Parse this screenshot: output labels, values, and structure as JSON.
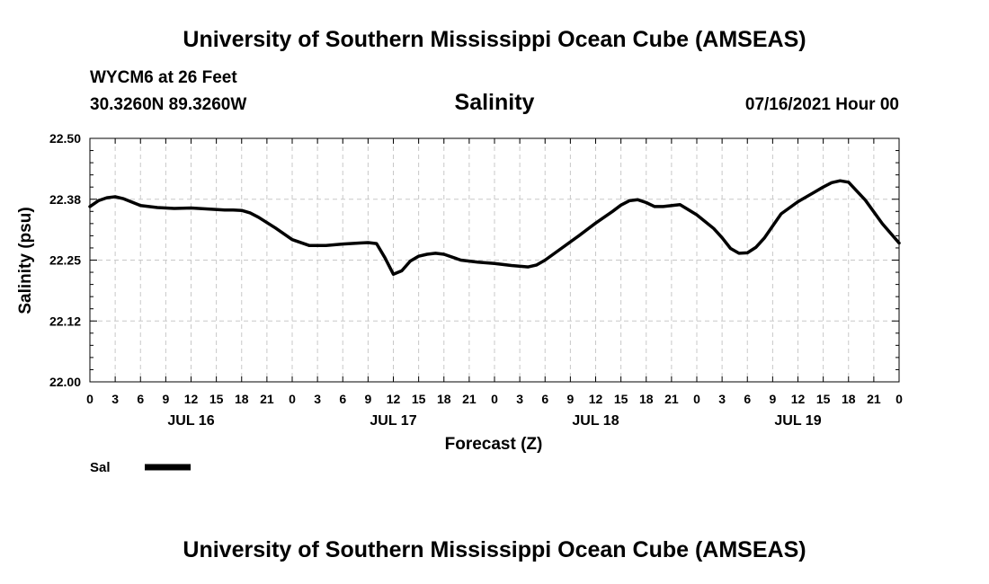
{
  "header": {
    "title": "University of Southern Mississippi Ocean Cube (AMSEAS)",
    "station": "WYCM6 at 26 Feet",
    "coords": "30.3260N  89.3260W",
    "date": "07/16/2021 Hour 00"
  },
  "footer": {
    "title": "University of Southern Mississippi Ocean Cube (AMSEAS)"
  },
  "colors": {
    "line": "#000000",
    "grid": "#c8c8c8"
  },
  "chart_data": {
    "type": "line",
    "title": "Salinity",
    "xlabel": "Forecast (Z)",
    "ylabel": "Salinity (psu)",
    "ylim": [
      22.0,
      22.5
    ],
    "yticks": [
      "22.00",
      "22.12",
      "22.25",
      "22.38",
      "22.50"
    ],
    "xlim": [
      0,
      96
    ],
    "xtick_step": 3,
    "xticks": [
      "0",
      "3",
      "6",
      "9",
      "12",
      "15",
      "18",
      "21",
      "0",
      "3",
      "6",
      "9",
      "12",
      "15",
      "18",
      "21",
      "0",
      "3",
      "6",
      "9",
      "12",
      "15",
      "18",
      "21",
      "0",
      "3",
      "6",
      "9",
      "12",
      "15",
      "18",
      "21",
      "0"
    ],
    "day_labels": [
      {
        "label": "JUL 16",
        "x": 12
      },
      {
        "label": "JUL 17",
        "x": 36
      },
      {
        "label": "JUL 18",
        "x": 60
      },
      {
        "label": "JUL 19",
        "x": 84
      }
    ],
    "grid": true,
    "legend_position": "bottom-left",
    "series": [
      {
        "name": "Sal",
        "x": [
          0,
          1,
          2,
          3,
          4,
          5,
          6,
          8,
          10,
          12,
          14,
          16,
          17,
          18,
          19,
          20,
          22,
          24,
          26,
          28,
          30,
          32,
          33,
          34,
          35,
          36,
          37,
          38,
          39,
          40,
          41,
          42,
          44,
          46,
          48,
          50,
          52,
          53,
          54,
          56,
          58,
          60,
          62,
          63,
          64,
          65,
          66,
          67,
          68,
          70,
          72,
          74,
          75,
          76,
          77,
          78,
          79,
          80,
          82,
          84,
          86,
          87,
          88,
          89,
          90,
          92,
          94,
          96
        ],
        "values": [
          22.36,
          22.372,
          22.378,
          22.38,
          22.376,
          22.369,
          22.362,
          22.358,
          22.356,
          22.357,
          22.355,
          22.353,
          22.353,
          22.352,
          22.347,
          22.338,
          22.316,
          22.292,
          22.28,
          22.28,
          22.283,
          22.285,
          22.286,
          22.284,
          22.255,
          22.221,
          22.228,
          22.248,
          22.258,
          22.262,
          22.264,
          22.262,
          22.25,
          22.246,
          22.243,
          22.239,
          22.236,
          22.24,
          22.25,
          22.275,
          22.3,
          22.326,
          22.35,
          22.363,
          22.372,
          22.374,
          22.368,
          22.36,
          22.36,
          22.364,
          22.343,
          22.315,
          22.296,
          22.274,
          22.264,
          22.265,
          22.276,
          22.295,
          22.345,
          22.37,
          22.39,
          22.4,
          22.409,
          22.413,
          22.41,
          22.373,
          22.325,
          22.285
        ]
      }
    ]
  }
}
